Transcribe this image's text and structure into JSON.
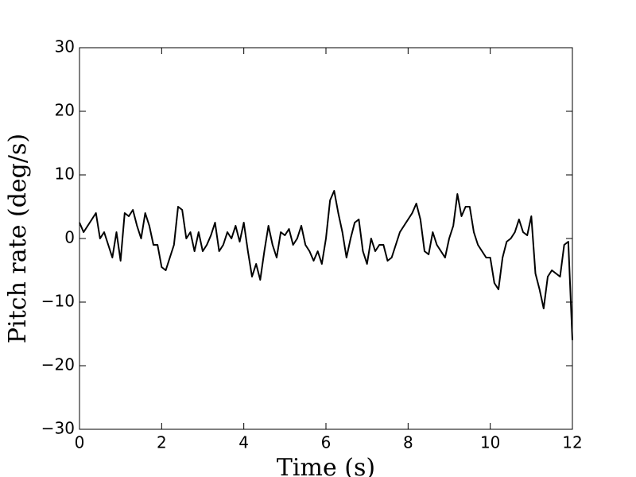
{
  "chart_data": {
    "type": "line",
    "xlabel": "Time (s)",
    "ylabel": "Pitch rate (deg/s)",
    "x": [
      0,
      0.1,
      0.2,
      0.3,
      0.4,
      0.5,
      0.6,
      0.7,
      0.8,
      0.9,
      1,
      1.1,
      1.2,
      1.3,
      1.4,
      1.5,
      1.6,
      1.7,
      1.8,
      1.9,
      2,
      2.1,
      2.2,
      2.3,
      2.4,
      2.5,
      2.6,
      2.7,
      2.8,
      2.9,
      3,
      3.1,
      3.2,
      3.3,
      3.4,
      3.5,
      3.6,
      3.7,
      3.8,
      3.9,
      4,
      4.1,
      4.2,
      4.3,
      4.4,
      4.5,
      4.6,
      4.7,
      4.8,
      4.9,
      5,
      5.1,
      5.2,
      5.3,
      5.4,
      5.5,
      5.6,
      5.7,
      5.8,
      5.9,
      6,
      6.1,
      6.2,
      6.3,
      6.4,
      6.5,
      6.6,
      6.7,
      6.8,
      6.9,
      7,
      7.1,
      7.2,
      7.3,
      7.4,
      7.5,
      7.6,
      7.7,
      7.8,
      7.9,
      8,
      8.1,
      8.2,
      8.3,
      8.4,
      8.5,
      8.6,
      8.7,
      8.8,
      8.9,
      9,
      9.1,
      9.2,
      9.3,
      9.4,
      9.5,
      9.6,
      9.7,
      9.8,
      9.9,
      10,
      10.1,
      10.2,
      10.3,
      10.4,
      10.5,
      10.6,
      10.7,
      10.8,
      10.9,
      11,
      11.1,
      11.2,
      11.3,
      11.4,
      11.5,
      11.6,
      11.7,
      11.8,
      11.9,
      12
    ],
    "series": [
      {
        "name": "Pitch rate",
        "color": "#000000",
        "values": [
          2.5,
          1,
          2,
          3,
          4,
          0,
          1,
          -1,
          -3,
          1,
          -3.5,
          4,
          3.5,
          4.5,
          2,
          0,
          4,
          2,
          -1,
          -1,
          -4.5,
          -5,
          -3,
          -1,
          5,
          4.5,
          0,
          1,
          -2,
          1,
          -2,
          -1,
          0.5,
          2.5,
          -2,
          -1,
          1,
          0,
          2,
          -0.5,
          2.5,
          -2,
          -6,
          -4,
          -6.5,
          -2,
          2,
          -1,
          -3,
          1,
          0.5,
          1.5,
          -1,
          0,
          2,
          -1,
          -2,
          -3.5,
          -2,
          -4,
          0,
          6,
          7.5,
          4,
          1,
          -3,
          0,
          2.5,
          3,
          -2,
          -4,
          0,
          -2,
          -1,
          -1,
          -3.5,
          -3,
          -1,
          1,
          2,
          3,
          4,
          5.5,
          3,
          -2,
          -2.5,
          1,
          -1,
          -2,
          -3,
          0,
          2,
          7,
          3.5,
          5,
          5,
          1,
          -1,
          -2,
          -3,
          -3,
          -7,
          -8,
          -3,
          -0.5,
          0,
          1,
          3,
          1,
          0.5,
          3.5,
          -5.5,
          -8,
          -11,
          -6,
          -5,
          -5.5,
          -6,
          -1,
          -0.5,
          -16
        ]
      }
    ],
    "xlim": [
      0,
      12
    ],
    "xticks": [
      0,
      2,
      4,
      6,
      8,
      10,
      12
    ],
    "ylim": [
      -30,
      30
    ],
    "yticks": [
      {
        "value": -30,
        "label": "−30"
      },
      {
        "value": -20,
        "label": "−20"
      },
      {
        "value": -10,
        "label": "−10"
      },
      0,
      10,
      20,
      30
    ]
  }
}
